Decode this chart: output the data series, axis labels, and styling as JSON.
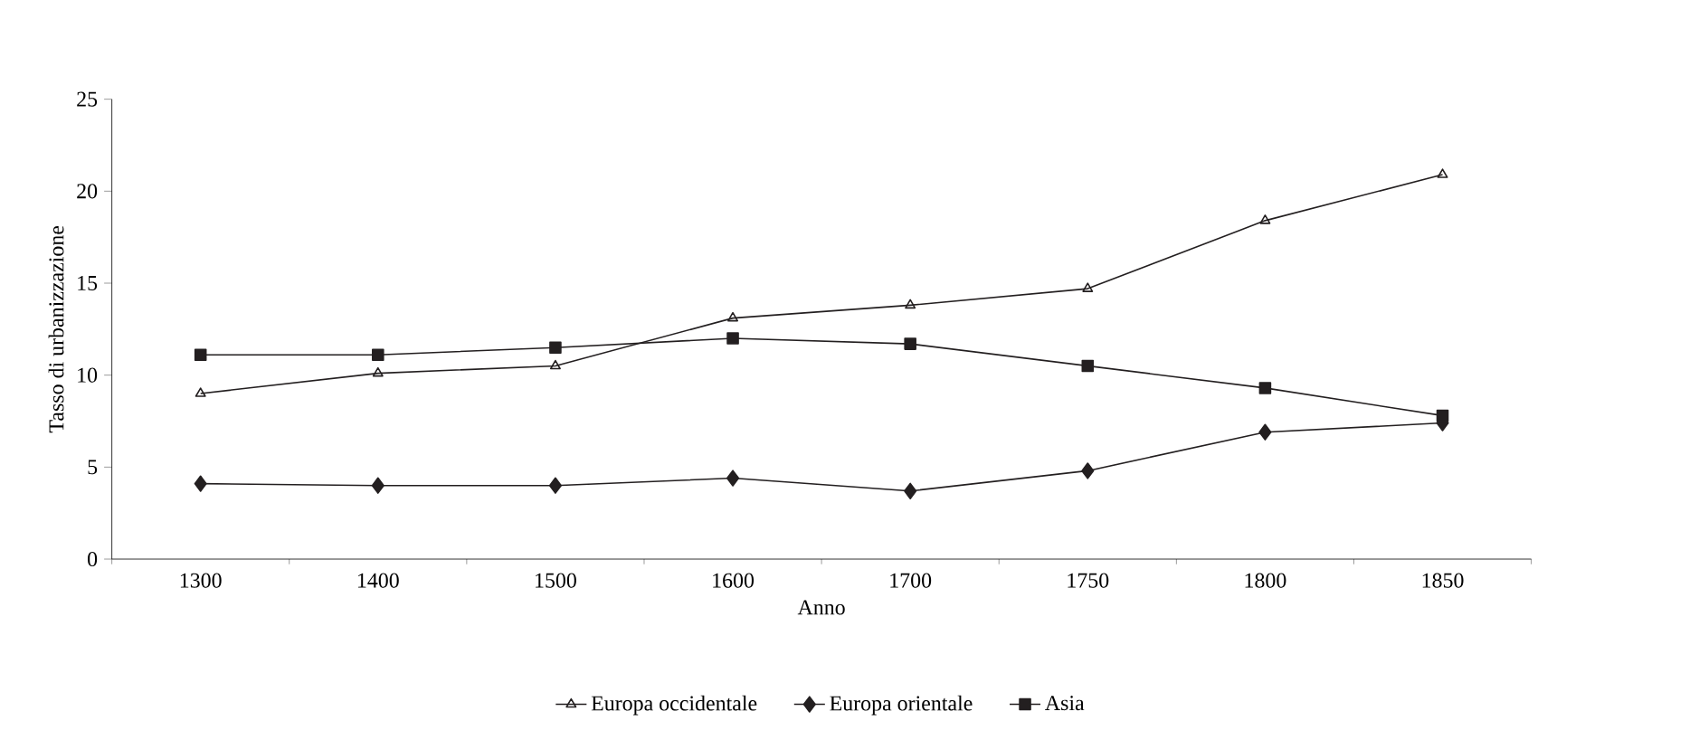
{
  "chart_data": {
    "type": "line",
    "xlabel": "Anno",
    "ylabel": "Tasso di urbanizzazione",
    "categories": [
      "1300",
      "1400",
      "1500",
      "1600",
      "1700",
      "1750",
      "1800",
      "1850"
    ],
    "ylim": [
      0,
      25
    ],
    "yticks": [
      0,
      5,
      10,
      15,
      20,
      25
    ],
    "legend": "bottom",
    "grid": false,
    "series": [
      {
        "name": "Europa occidentale",
        "color": "#231f20",
        "marker": "triangle",
        "values": [
          9.0,
          10.1,
          10.5,
          13.1,
          13.8,
          14.7,
          18.4,
          20.9
        ]
      },
      {
        "name": "Europa orientale",
        "color": "#231f20",
        "marker": "diamond",
        "values": [
          4.1,
          4.0,
          4.0,
          4.4,
          3.7,
          4.8,
          6.9,
          7.4
        ]
      },
      {
        "name": "Asia",
        "color": "#231f20",
        "marker": "square",
        "values": [
          11.1,
          11.1,
          11.5,
          12.0,
          11.7,
          10.5,
          9.3,
          7.8
        ]
      }
    ]
  }
}
